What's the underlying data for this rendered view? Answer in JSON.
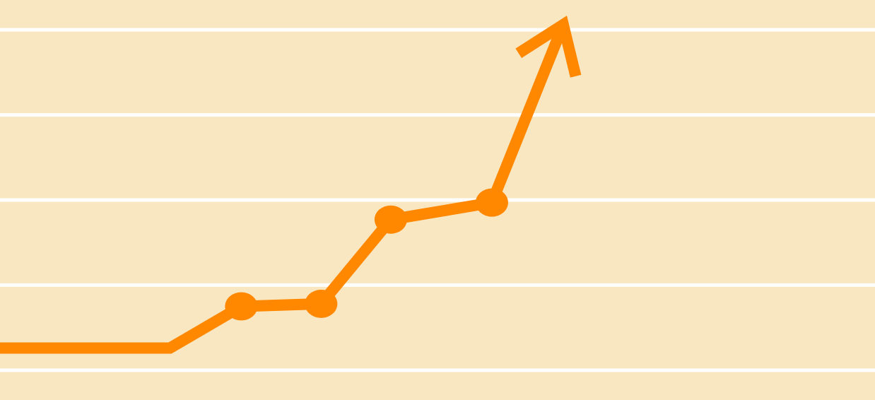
{
  "chart_data": {
    "type": "line",
    "title": "",
    "xlabel": "",
    "ylabel": "",
    "grid": true,
    "gridlines_y": [
      0,
      1,
      2,
      3,
      4
    ],
    "ylim": [
      -0.35,
      4.35
    ],
    "xlim": [
      0,
      10.3
    ],
    "series": [
      {
        "x": [
          0,
          2,
          2.84,
          3.78,
          4.6,
          5.79
        ],
        "y": [
          0.26,
          0.26,
          0.75,
          0.78,
          1.77,
          1.97
        ],
        "markers": [
          false,
          false,
          true,
          true,
          true,
          true
        ]
      }
    ],
    "arrow_end": {
      "x": 6.63,
      "y": 4.06
    },
    "colors": {
      "background": "#F9E7C2",
      "grid": "#FFFFFF",
      "line": "#FF8800"
    }
  }
}
